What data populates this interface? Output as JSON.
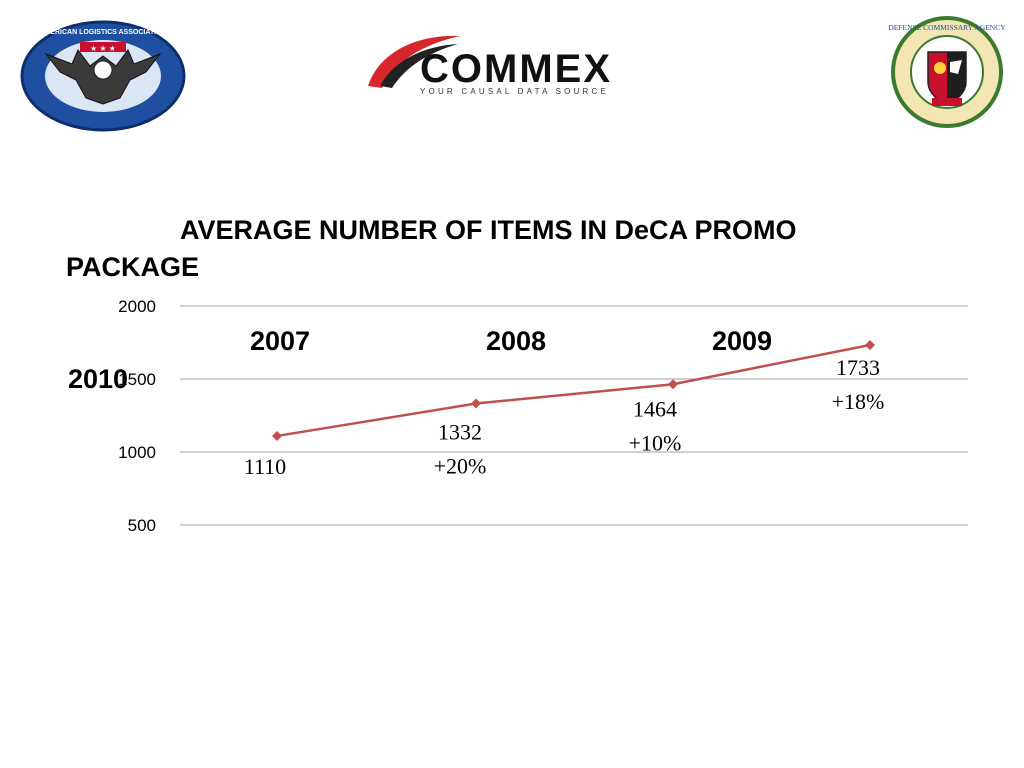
{
  "logos": {
    "left_ring_text": "AMERICAN LOGISTICS ASSOCIATION",
    "center_brand": "COMMEX",
    "center_tagline": "YOUR CAUSAL DATA SOURCE",
    "right_ring_text": "DEFENSE COMMISSARY AGENCY"
  },
  "colors": {
    "series_line": "#c0504d",
    "gridline": "#a6a6a6",
    "commex_red": "#d8262d",
    "ala_blue": "#1f4fa0",
    "deca_green": "#3c7a2e"
  },
  "chart_data": {
    "type": "line",
    "title": "AVERAGE NUMBER OF ITEMS IN DeCA PROMO PACKAGE",
    "categories": [
      "2007",
      "2008",
      "2009",
      "2010"
    ],
    "values": [
      1110,
      1332,
      1464,
      1733
    ],
    "data_labels": [
      "1110",
      "1332\n+20%",
      "1464\n+10%",
      "1733\n+18%"
    ],
    "yticks": [
      500,
      1000,
      1500,
      2000
    ],
    "ylim": [
      500,
      2000
    ],
    "grid": true,
    "legend": "none"
  }
}
